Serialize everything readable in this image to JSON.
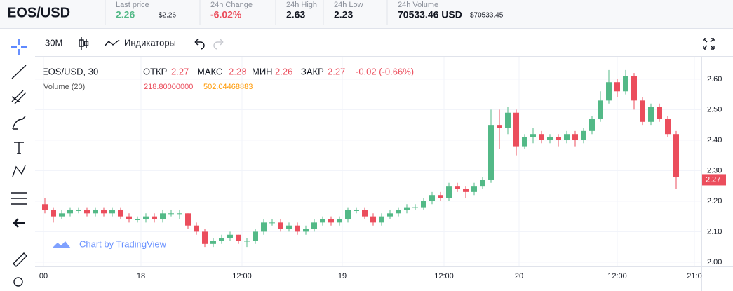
{
  "header": {
    "symbol": "EOS/USD",
    "stats": [
      {
        "label": "Last price",
        "value": "2.26",
        "sub": "$2.26"
      },
      {
        "label": "24h Change",
        "value": "-6.02%"
      },
      {
        "label": "24h High",
        "value": "2.63"
      },
      {
        "label": "24h Low",
        "value": "2.23"
      },
      {
        "label": "24h Volume",
        "value": "70533.46 USD",
        "sub": "$70533.45"
      }
    ]
  },
  "toolbar": {
    "interval": "30M",
    "indicators": "Индикаторы"
  },
  "legend": {
    "title": "EOS/USD, 30",
    "open_label": "ОТКР",
    "open": "2.27",
    "high_label": "МАКС",
    "high": "2.28",
    "low_label": "МИН",
    "low": "2.26",
    "close_label": "ЗАКР",
    "close": "2.27",
    "change": "-0.02 (-0.66%)"
  },
  "volume_legend": {
    "title": "Volume (20)",
    "values": [
      "218.80000000",
      "502.04468883"
    ]
  },
  "watermark": "Chart by TradingView",
  "chart": {
    "type": "candlestick",
    "up_color": "#53b987",
    "down_color": "#eb4d5c",
    "ylim": [
      1.986,
      2.671
    ],
    "yticks": [
      {
        "value": 2.0,
        "label": "2.00"
      },
      {
        "value": 2.1,
        "label": "2.10"
      },
      {
        "value": 2.2,
        "label": "2.20"
      },
      {
        "value": 2.3,
        "label": "2.30"
      },
      {
        "value": 2.4,
        "label": "2.40"
      },
      {
        "value": 2.5,
        "label": "2.50"
      },
      {
        "value": 2.6,
        "label": "2.60"
      }
    ],
    "x_labels": [
      "00",
      "18",
      "12:00",
      "19",
      "12:00",
      "20",
      "12:00",
      "21:0"
    ],
    "last": 2.27,
    "candles": [
      [
        2.19,
        2.21,
        2.16,
        2.17
      ],
      [
        2.17,
        2.18,
        2.13,
        2.15
      ],
      [
        2.15,
        2.17,
        2.14,
        2.16
      ],
      [
        2.16,
        2.18,
        2.15,
        2.17
      ],
      [
        2.17,
        2.18,
        2.16,
        2.17
      ],
      [
        2.17,
        2.18,
        2.15,
        2.16
      ],
      [
        2.16,
        2.18,
        2.15,
        2.17
      ],
      [
        2.17,
        2.18,
        2.15,
        2.16
      ],
      [
        2.16,
        2.18,
        2.15,
        2.17
      ],
      [
        2.17,
        2.18,
        2.14,
        2.15
      ],
      [
        2.15,
        2.16,
        2.13,
        2.14
      ],
      [
        2.14,
        2.15,
        2.13,
        2.14
      ],
      [
        2.14,
        2.16,
        2.13,
        2.15
      ],
      [
        2.15,
        2.16,
        2.13,
        2.14
      ],
      [
        2.14,
        2.17,
        2.13,
        2.16
      ],
      [
        2.16,
        2.17,
        2.15,
        2.16
      ],
      [
        2.16,
        2.17,
        2.14,
        2.16
      ],
      [
        2.16,
        2.16,
        2.11,
        2.12
      ],
      [
        2.12,
        2.13,
        2.09,
        2.1
      ],
      [
        2.1,
        2.11,
        2.05,
        2.06
      ],
      [
        2.06,
        2.08,
        2.05,
        2.07
      ],
      [
        2.07,
        2.09,
        2.06,
        2.08
      ],
      [
        2.08,
        2.1,
        2.07,
        2.09
      ],
      [
        2.09,
        2.09,
        2.06,
        2.07
      ],
      [
        2.07,
        2.08,
        2.05,
        2.07
      ],
      [
        2.07,
        2.11,
        2.06,
        2.1
      ],
      [
        2.1,
        2.14,
        2.09,
        2.13
      ],
      [
        2.13,
        2.14,
        2.12,
        2.13
      ],
      [
        2.13,
        2.14,
        2.1,
        2.11
      ],
      [
        2.11,
        2.13,
        2.1,
        2.12
      ],
      [
        2.12,
        2.13,
        2.09,
        2.1
      ],
      [
        2.1,
        2.12,
        2.09,
        2.11
      ],
      [
        2.11,
        2.14,
        2.1,
        2.13
      ],
      [
        2.13,
        2.15,
        2.12,
        2.14
      ],
      [
        2.14,
        2.15,
        2.12,
        2.13
      ],
      [
        2.13,
        2.15,
        2.12,
        2.14
      ],
      [
        2.14,
        2.18,
        2.13,
        2.17
      ],
      [
        2.17,
        2.18,
        2.16,
        2.17
      ],
      [
        2.17,
        2.18,
        2.14,
        2.15
      ],
      [
        2.15,
        2.16,
        2.12,
        2.13
      ],
      [
        2.13,
        2.16,
        2.12,
        2.15
      ],
      [
        2.15,
        2.17,
        2.14,
        2.16
      ],
      [
        2.16,
        2.18,
        2.15,
        2.17
      ],
      [
        2.17,
        2.19,
        2.16,
        2.18
      ],
      [
        2.18,
        2.19,
        2.17,
        2.18
      ],
      [
        2.18,
        2.21,
        2.17,
        2.2
      ],
      [
        2.2,
        2.23,
        2.19,
        2.22
      ],
      [
        2.22,
        2.23,
        2.2,
        2.21
      ],
      [
        2.21,
        2.26,
        2.2,
        2.25
      ],
      [
        2.25,
        2.26,
        2.23,
        2.24
      ],
      [
        2.24,
        2.25,
        2.21,
        2.23
      ],
      [
        2.23,
        2.26,
        2.22,
        2.25
      ],
      [
        2.25,
        2.28,
        2.24,
        2.27
      ],
      [
        2.27,
        2.5,
        2.26,
        2.45
      ],
      [
        2.45,
        2.5,
        2.37,
        2.44
      ],
      [
        2.44,
        2.51,
        2.42,
        2.49
      ],
      [
        2.49,
        2.5,
        2.35,
        2.38
      ],
      [
        2.38,
        2.42,
        2.37,
        2.41
      ],
      [
        2.41,
        2.44,
        2.39,
        2.42
      ],
      [
        2.42,
        2.43,
        2.39,
        2.4
      ],
      [
        2.4,
        2.42,
        2.39,
        2.41
      ],
      [
        2.41,
        2.42,
        2.38,
        2.4
      ],
      [
        2.4,
        2.43,
        2.39,
        2.42
      ],
      [
        2.42,
        2.43,
        2.38,
        2.4
      ],
      [
        2.4,
        2.44,
        2.39,
        2.43
      ],
      [
        2.43,
        2.48,
        2.42,
        2.47
      ],
      [
        2.47,
        2.56,
        2.46,
        2.53
      ],
      [
        2.53,
        2.63,
        2.52,
        2.59
      ],
      [
        2.59,
        2.6,
        2.54,
        2.56
      ],
      [
        2.56,
        2.63,
        2.55,
        2.61
      ],
      [
        2.61,
        2.62,
        2.5,
        2.53
      ],
      [
        2.53,
        2.54,
        2.45,
        2.46
      ],
      [
        2.46,
        2.52,
        2.45,
        2.51
      ],
      [
        2.51,
        2.52,
        2.46,
        2.47
      ],
      [
        2.47,
        2.48,
        2.41,
        2.42
      ],
      [
        2.42,
        2.43,
        2.24,
        2.28
      ]
    ]
  }
}
